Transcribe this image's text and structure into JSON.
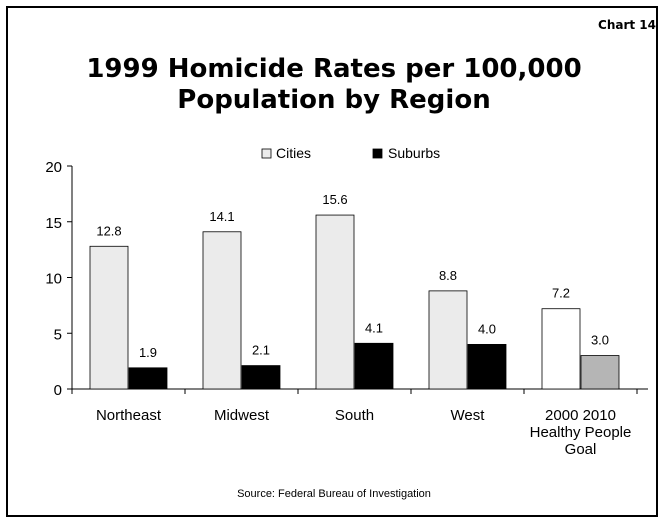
{
  "chart_number": "Chart 14",
  "title_line1": "1999 Homicide Rates per 100,000",
  "title_line2": "Population by Region",
  "source": "Source: Federal Bureau of Investigation",
  "chart_data": {
    "type": "bar",
    "title": "1999 Homicide Rates per 100,000 Population by Region",
    "categories": [
      [
        "Northeast"
      ],
      [
        "Midwest"
      ],
      [
        "South"
      ],
      [
        "West"
      ],
      [
        "2000 2010",
        "Healthy People",
        "Goal"
      ]
    ],
    "series": [
      {
        "name": "Cities",
        "values": [
          12.8,
          14.1,
          15.6,
          8.8,
          7.2
        ],
        "labels": [
          "12.8",
          "14.1",
          "15.6",
          "8.8",
          "7.2"
        ],
        "color": "#ebebeb",
        "goal_color": "#ffffff"
      },
      {
        "name": "Suburbs",
        "values": [
          1.9,
          2.1,
          4.1,
          4.0,
          3.0
        ],
        "labels": [
          "1.9",
          "2.1",
          "4.1",
          "4.0",
          "3.0"
        ],
        "color": "#000000",
        "goal_color": "#b5b5b5"
      }
    ],
    "ylim": [
      0,
      20
    ],
    "yticks": [
      0,
      5,
      10,
      15,
      20
    ],
    "xlabel": "",
    "ylabel": "",
    "grid": false,
    "legend_position": "top-center"
  }
}
